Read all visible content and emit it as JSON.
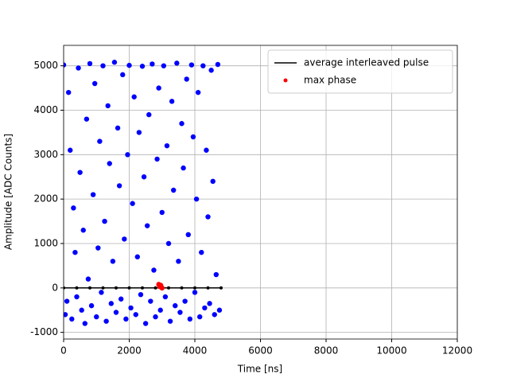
{
  "chart_data": {
    "type": "scatter",
    "xlabel": "Time [ns]",
    "ylabel": "Amplitude [ADC Counts]",
    "xlim": [
      0,
      12000
    ],
    "ylim": [
      -1150,
      5460
    ],
    "xticks": [
      0,
      2000,
      4000,
      6000,
      8000,
      10000,
      12000
    ],
    "yticks": [
      -1000,
      0,
      1000,
      2000,
      3000,
      4000,
      5000
    ],
    "grid": true,
    "legend": "upper right",
    "series": [
      {
        "color": "#0000ff",
        "x": [
          0,
          50,
          100,
          150,
          200,
          250,
          300,
          350,
          400,
          450,
          500,
          550,
          600,
          650,
          700,
          750,
          800,
          850,
          900,
          950,
          1000,
          1050,
          1100,
          1150,
          1200,
          1250,
          1300,
          1350,
          1400,
          1450,
          1500,
          1550,
          1600,
          1650,
          1700,
          1750,
          1800,
          1850,
          1900,
          1950,
          2000,
          2050,
          2100,
          2150,
          2200,
          2250,
          2300,
          2350,
          2400,
          2450,
          2500,
          2550,
          2600,
          2650,
          2700,
          2750,
          2800,
          2850,
          2900,
          2950,
          3000,
          3050,
          3100,
          3150,
          3200,
          3250,
          3300,
          3350,
          3400,
          3450,
          3500,
          3550,
          3600,
          3650,
          3700,
          3750,
          3800,
          3850,
          3900,
          3950,
          4000,
          4050,
          4100,
          4150,
          4200,
          4250,
          4300,
          4350,
          4400,
          4450,
          4500,
          4550,
          4600,
          4650,
          4700,
          4750
        ],
        "y": [
          5020,
          -600,
          -300,
          4400,
          3100,
          -700,
          1800,
          800,
          -200,
          4950,
          2600,
          -500,
          1300,
          -800,
          3800,
          200,
          5050,
          -400,
          2100,
          4600,
          -650,
          900,
          3300,
          -100,
          5000,
          1500,
          -750,
          4100,
          2800,
          -350,
          600,
          5080,
          -550,
          3600,
          2300,
          -250,
          4800,
          1100,
          -700,
          3000,
          5010,
          -450,
          1900,
          4300,
          -600,
          700,
          3500,
          -150,
          4990,
          2500,
          -800,
          1400,
          3900,
          -300,
          5040,
          400,
          -650,
          2900,
          4500,
          -500,
          1700,
          5000,
          -200,
          3200,
          1000,
          -750,
          4200,
          2200,
          -400,
          5060,
          600,
          -550,
          3700,
          2700,
          -300,
          4700,
          1200,
          -700,
          5020,
          3400,
          -100,
          2000,
          4400,
          -650,
          800,
          5000,
          -450,
          3100,
          1600,
          -350,
          4900,
          2400,
          -600,
          300,
          5030,
          -500
        ]
      },
      {
        "name": "average interleaved pulse",
        "color": "#000000",
        "type": "line",
        "x": [
          0,
          400,
          800,
          1200,
          1600,
          2000,
          2400,
          2800,
          3200,
          3600,
          4000,
          4400,
          4800
        ],
        "y": [
          0,
          0,
          0,
          0,
          0,
          0,
          0,
          0,
          0,
          0,
          0,
          0,
          0
        ]
      },
      {
        "name": "max phase",
        "color": "#ff0000",
        "x": [
          2900,
          2930,
          2960,
          3000
        ],
        "y": [
          80,
          30,
          60,
          0
        ]
      }
    ]
  }
}
